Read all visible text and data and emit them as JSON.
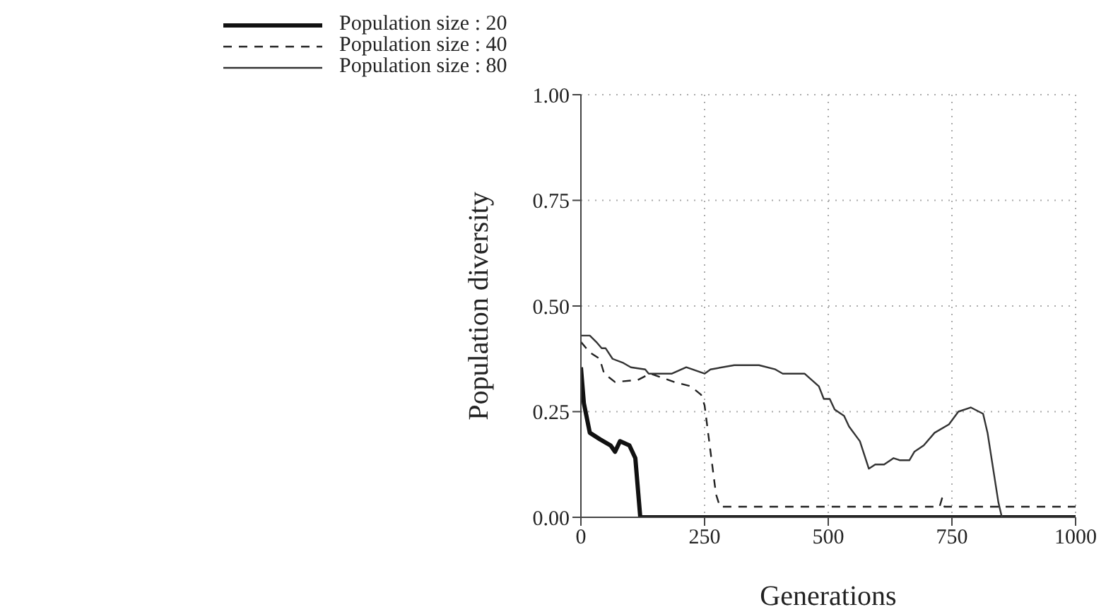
{
  "chart_data": {
    "type": "line",
    "xlabel": "Generations",
    "ylabel": "Population diversity",
    "xlim": [
      0,
      1000
    ],
    "xticks": [
      0,
      250,
      500,
      750,
      1000
    ],
    "ylim": [
      0,
      1
    ],
    "yticks": [
      {
        "value": 0,
        "label": "0.00"
      },
      {
        "value": 0.25,
        "label": "0.25"
      },
      {
        "value": 0.5,
        "label": "0.50"
      },
      {
        "value": 0.75,
        "label": "0.75"
      },
      {
        "value": 1,
        "label": "1.00"
      }
    ],
    "grid": true,
    "legend": "top left",
    "marker": "none",
    "series": [
      {
        "name": "Population size : 20",
        "color": "#111111",
        "line_style": "solid",
        "x": [
          0,
          6,
          18,
          38,
          60,
          69,
          79,
          98,
          110,
          120,
          1000
        ],
        "values": [
          0.355,
          0.27,
          0.2,
          0.185,
          0.17,
          0.155,
          0.18,
          0.17,
          0.14,
          0,
          0
        ]
      },
      {
        "name": "Population size : 40",
        "color": "#222222",
        "line_style": "dashed",
        "x": [
          0,
          18,
          38,
          47,
          69,
          115,
          140,
          189,
          222,
          243,
          250,
          273,
          281,
          725,
          730,
          735,
          1000
        ],
        "values": [
          0.415,
          0.39,
          0.375,
          0.34,
          0.32,
          0.325,
          0.34,
          0.32,
          0.31,
          0.29,
          0.265,
          0.055,
          0.025,
          0.025,
          0.045,
          0.025,
          0.025
        ]
      },
      {
        "name": "Population size : 80",
        "color": "#333333",
        "line_style": "solid",
        "x": [
          0,
          18,
          31,
          42,
          50,
          64,
          86,
          101,
          130,
          137,
          184,
          213,
          250,
          262,
          310,
          360,
          393,
          408,
          437,
          452,
          481,
          491,
          503,
          513,
          532,
          542,
          564,
          582,
          595,
          613,
          632,
          645,
          664,
          674,
          693,
          715,
          744,
          763,
          788,
          813,
          822,
          844,
          851,
          1000
        ],
        "values": [
          0.43,
          0.43,
          0.415,
          0.4,
          0.4,
          0.375,
          0.365,
          0.355,
          0.35,
          0.34,
          0.34,
          0.355,
          0.34,
          0.35,
          0.36,
          0.36,
          0.35,
          0.34,
          0.34,
          0.34,
          0.31,
          0.28,
          0.28,
          0.255,
          0.24,
          0.215,
          0.18,
          0.115,
          0.125,
          0.125,
          0.14,
          0.135,
          0.135,
          0.155,
          0.17,
          0.2,
          0.22,
          0.25,
          0.26,
          0.245,
          0.2,
          0.035,
          0,
          0
        ]
      }
    ]
  }
}
